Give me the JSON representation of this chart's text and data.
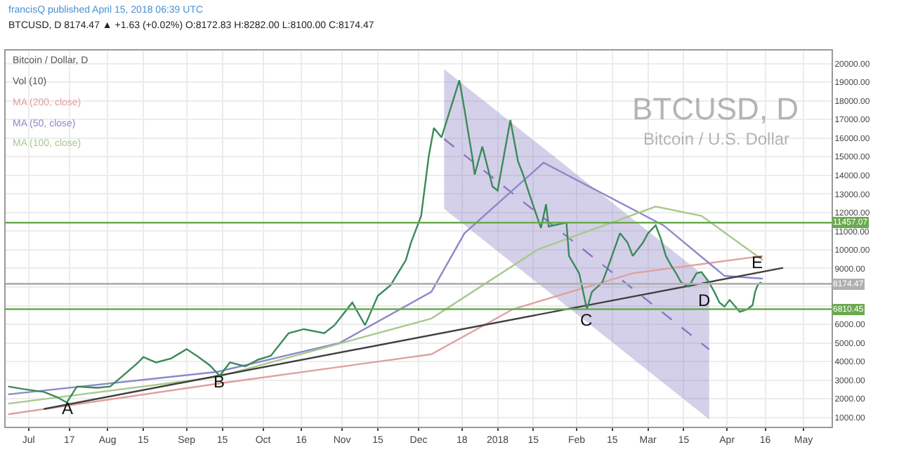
{
  "chart_data": {
    "type": "line",
    "title": "francisQ published April 15, 2018 06:39 UTC",
    "subtitle": "BTCUSD, D 8174.47 ▲ +1.63 (+0.02%) O:8172.83 H:8282.00 L:8100.00 C:8174.47",
    "annotations": [
      "Bitcoin / Dollar, D",
      "Vol (10)",
      "BTCUSD, D",
      "Bitcoin / U.S. Dollar",
      {
        "text": "A",
        "x": "2017-07-16",
        "y": 1500
      },
      {
        "text": "B",
        "x": "2017-09-14",
        "y": 2900
      },
      {
        "text": "C",
        "x": "2018-02-05",
        "y": 6200
      },
      {
        "text": "D",
        "x": "2018-03-23",
        "y": 7300
      },
      {
        "text": "E",
        "x": "2018-04-13",
        "y": 9300
      }
    ],
    "xlim": [
      "2017-06-22",
      "2018-05-12"
    ],
    "xticks": [
      {
        "value": "2017-07-01",
        "label": "Jul"
      },
      {
        "value": "2017-07-17",
        "label": "17"
      },
      {
        "value": "2017-08-01",
        "label": "Aug"
      },
      {
        "value": "2017-08-15",
        "label": "15"
      },
      {
        "value": "2017-09-01",
        "label": "Sep"
      },
      {
        "value": "2017-09-15",
        "label": "15"
      },
      {
        "value": "2017-10-01",
        "label": "Oct"
      },
      {
        "value": "2017-10-16",
        "label": "16"
      },
      {
        "value": "2017-11-01",
        "label": "Nov"
      },
      {
        "value": "2017-11-15",
        "label": "15"
      },
      {
        "value": "2017-12-01",
        "label": "Dec"
      },
      {
        "value": "2017-12-18",
        "label": "18"
      },
      {
        "value": "2018-01-01",
        "label": "2018"
      },
      {
        "value": "2018-01-15",
        "label": "15"
      },
      {
        "value": "2018-02-01",
        "label": "Feb"
      },
      {
        "value": "2018-02-15",
        "label": "15"
      },
      {
        "value": "2018-03-01",
        "label": "Mar"
      },
      {
        "value": "2018-03-15",
        "label": "15"
      },
      {
        "value": "2018-04-01",
        "label": "Apr"
      },
      {
        "value": "2018-04-16",
        "label": "16"
      },
      {
        "value": "2018-05-01",
        "label": "May"
      }
    ],
    "ylim": [
      500,
      20700
    ],
    "yticks": [
      {
        "value": 1000,
        "label": "1000.00"
      },
      {
        "value": 2000,
        "label": "2000.00"
      },
      {
        "value": 3000,
        "label": "3000.00"
      },
      {
        "value": 4000,
        "label": "4000.00"
      },
      {
        "value": 5000,
        "label": "5000.00"
      },
      {
        "value": 6000,
        "label": "6000.00"
      },
      {
        "value": 7000,
        "label": null
      },
      {
        "value": 8000,
        "label": null
      },
      {
        "value": 9000,
        "label": "9000.00"
      },
      {
        "value": 10000,
        "label": "10000.00"
      },
      {
        "value": 11000,
        "label": "11000.00"
      },
      {
        "value": 12000,
        "label": "12000.00"
      },
      {
        "value": 13000,
        "label": "13000.00"
      },
      {
        "value": 14000,
        "label": "14000.00"
      },
      {
        "value": 15000,
        "label": "15000.00"
      },
      {
        "value": 16000,
        "label": "16000.00"
      },
      {
        "value": 17000,
        "label": "17000.00"
      },
      {
        "value": 18000,
        "label": "18000.00"
      },
      {
        "value": 19000,
        "label": "19000.00"
      },
      {
        "value": 20000,
        "label": "20000.00"
      }
    ],
    "grid": true,
    "legend": false,
    "marker": "none",
    "ref_lines": [
      {
        "axis": "y",
        "value": 11457.07,
        "label": "11457.07",
        "color": "#6aaa50"
      },
      {
        "axis": "y",
        "value": 8174.47,
        "label": "8174.47",
        "color": "#b0b0b0"
      },
      {
        "axis": "y",
        "value": 6810.45,
        "label": "6810.45",
        "color": "#6aaa50"
      }
    ],
    "series": [
      {
        "color": "#8878c0",
        "line_style": "dashed",
        "x": [
          "2017-12-11",
          "2018-03-25"
        ],
        "values": [
          15950,
          4650
        ],
        "lower": [
          12200,
          900
        ],
        "upper": [
          19700,
          8400
        ]
      },
      {
        "name": "MA (200, close)",
        "color": "#e0a0a0",
        "x": [
          "2017-06-23",
          "2017-09-13",
          "2017-12-06",
          "2018-01-07",
          "2018-02-23",
          "2018-04-15"
        ],
        "values": [
          1170,
          2810,
          4390,
          6810,
          8740,
          9670
        ]
      },
      {
        "name": "MA (50, close)",
        "color": "#8a8ac8",
        "x": [
          "2017-06-23",
          "2017-09-13",
          "2017-10-31",
          "2017-12-06",
          "2017-12-19",
          "2018-01-19",
          "2018-03-07",
          "2018-03-31",
          "2018-04-15"
        ],
        "values": [
          2240,
          3450,
          5000,
          7740,
          10890,
          14680,
          11320,
          8600,
          8450
        ]
      },
      {
        "name": "MA (100, close)",
        "color": "#a8c890",
        "x": [
          "2017-06-23",
          "2017-09-13",
          "2017-12-06",
          "2018-01-17",
          "2018-03-04",
          "2018-03-22",
          "2018-04-15"
        ],
        "values": [
          1740,
          3170,
          6310,
          10030,
          12320,
          11820,
          9450
        ]
      },
      {
        "color": "#404040",
        "x": [
          "2017-07-07",
          "2018-04-23"
        ],
        "values": [
          1450,
          9030
        ]
      },
      {
        "color": "#3a8a5a",
        "x": [
          "2017-06-23",
          "2017-06-29",
          "2017-07-07",
          "2017-07-12",
          "2017-07-16",
          "2017-07-20",
          "2017-07-28",
          "2017-08-02",
          "2017-08-07",
          "2017-08-13",
          "2017-08-15",
          "2017-08-20",
          "2017-08-26",
          "2017-09-01",
          "2017-09-05",
          "2017-09-10",
          "2017-09-14",
          "2017-09-18",
          "2017-09-24",
          "2017-09-29",
          "2017-10-04",
          "2017-10-11",
          "2017-10-17",
          "2017-10-25",
          "2017-10-29",
          "2017-11-05",
          "2017-11-10",
          "2017-11-15",
          "2017-11-20",
          "2017-11-26",
          "2017-11-28",
          "2017-12-02",
          "2017-12-05",
          "2017-12-07",
          "2017-12-10",
          "2017-12-17",
          "2017-12-19",
          "2017-12-22",
          "2017-12-23",
          "2017-12-26",
          "2017-12-30",
          "2018-01-01",
          "2018-01-06",
          "2018-01-09",
          "2018-01-11",
          "2018-01-13",
          "2018-01-16",
          "2018-01-18",
          "2018-01-20",
          "2018-01-21",
          "2018-01-28",
          "2018-01-29",
          "2018-02-02",
          "2018-02-05",
          "2018-02-07",
          "2018-02-11",
          "2018-02-13",
          "2018-02-18",
          "2018-02-21",
          "2018-02-23",
          "2018-02-27",
          "2018-03-01",
          "2018-03-04",
          "2018-03-06",
          "2018-03-08",
          "2018-03-10",
          "2018-03-12",
          "2018-03-14",
          "2018-03-17",
          "2018-03-20",
          "2018-03-22",
          "2018-03-25",
          "2018-03-27",
          "2018-03-29",
          "2018-03-31",
          "2018-04-02",
          "2018-04-06",
          "2018-04-09",
          "2018-04-11",
          "2018-04-12",
          "2018-04-13",
          "2018-04-14",
          "2018-04-15"
        ],
        "values": [
          2660,
          2520,
          2370,
          2100,
          1800,
          2660,
          2590,
          2660,
          3240,
          3950,
          4240,
          3950,
          4170,
          4670,
          4310,
          3810,
          3240,
          3950,
          3740,
          4100,
          4310,
          5520,
          5740,
          5520,
          5950,
          7170,
          5950,
          7530,
          8100,
          9450,
          10380,
          11820,
          15040,
          16540,
          16040,
          19100,
          17530,
          15040,
          14040,
          15540,
          13400,
          13180,
          16970,
          14750,
          14040,
          13180,
          11960,
          11170,
          12450,
          11250,
          11460,
          9670,
          8740,
          6810,
          7740,
          8240,
          8960,
          10890,
          10380,
          9670,
          10380,
          10890,
          11320,
          10600,
          9670,
          9170,
          8740,
          8240,
          8030,
          8740,
          8810,
          8240,
          7740,
          7170,
          6950,
          7310,
          6670,
          6810,
          7030,
          7740,
          8100,
          8240,
          8174.47
        ]
      }
    ]
  }
}
